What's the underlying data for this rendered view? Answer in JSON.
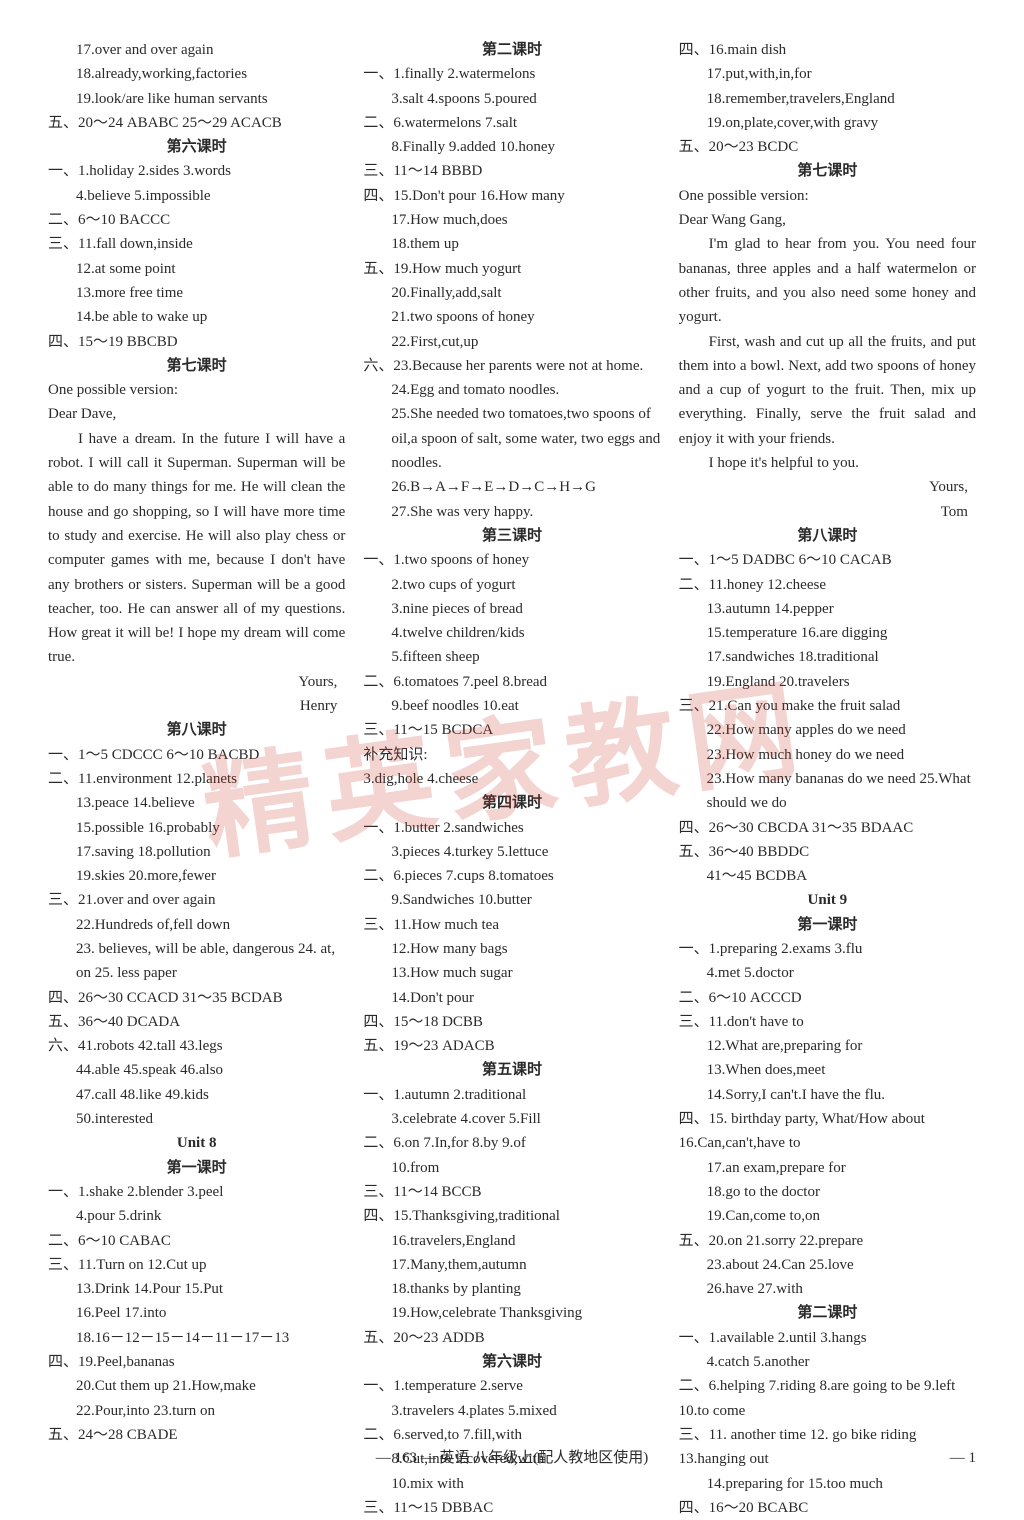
{
  "watermark": "精英家教网",
  "footer": "— 163 —   英语 八年级上(配人教地区使用)",
  "page_right": "— 1",
  "col1": [
    {
      "cls": "indent1",
      "t": "17.over and over again"
    },
    {
      "cls": "indent1",
      "t": "18.already,working,factories"
    },
    {
      "cls": "indent1",
      "t": "19.look/are like human servants"
    },
    {
      "cls": "",
      "t": "五、20～24 ABABC 25～29 ACACB"
    },
    {
      "cls": "header",
      "t": "第六课时"
    },
    {
      "cls": "",
      "t": "一、1.holiday  2.sides  3.words"
    },
    {
      "cls": "indent1",
      "t": "4.believe  5.impossible"
    },
    {
      "cls": "",
      "t": "二、6～10 BACCC"
    },
    {
      "cls": "",
      "t": "三、11.fall down,inside"
    },
    {
      "cls": "indent1",
      "t": "12.at some point"
    },
    {
      "cls": "indent1",
      "t": "13.more free time"
    },
    {
      "cls": "indent1",
      "t": "14.be able to wake up"
    },
    {
      "cls": "",
      "t": "四、15～19  BBCBD"
    },
    {
      "cls": "header",
      "t": "第七课时"
    },
    {
      "cls": "",
      "t": "One possible version:"
    },
    {
      "cls": "",
      "t": "Dear Dave,"
    },
    {
      "cls": "para",
      "t": "I have a dream. In the future I will have a robot. I will call it Superman. Superman will be able to do many things for me. He will clean the house and go shopping, so I will have more time to study and exercise. He will also play chess or computer games with me, because I don't have any brothers or sisters. Superman will be a good teacher, too. He can answer all of my questions. How great it will be! I hope my dream will come true."
    },
    {
      "cls": "right",
      "t": "Yours,"
    },
    {
      "cls": "right",
      "t": "Henry"
    },
    {
      "cls": "header",
      "t": "第八课时"
    },
    {
      "cls": "",
      "t": "一、1～5 CDCCC  6～10 BACBD"
    },
    {
      "cls": "",
      "t": "二、11.environment  12.planets"
    },
    {
      "cls": "indent1",
      "t": "13.peace  14.believe"
    },
    {
      "cls": "indent1",
      "t": "15.possible  16.probably"
    },
    {
      "cls": "indent1",
      "t": "17.saving  18.pollution"
    },
    {
      "cls": "indent1",
      "t": "19.skies  20.more,fewer"
    },
    {
      "cls": "",
      "t": "三、21.over and over again"
    },
    {
      "cls": "indent1",
      "t": "22.Hundreds of,fell down"
    },
    {
      "cls": "indent1",
      "t": "23. believes, will be able, dangerous  24. at, on  25. less paper"
    },
    {
      "cls": "",
      "t": "四、26～30 CCACD 31～35 BCDAB"
    },
    {
      "cls": "",
      "t": "五、36～40  DCADA"
    },
    {
      "cls": "",
      "t": "六、41.robots  42.tall  43.legs"
    },
    {
      "cls": "indent1",
      "t": "44.able  45.speak  46.also"
    },
    {
      "cls": "indent1",
      "t": "47.call  48.like  49.kids"
    },
    {
      "cls": "indent1",
      "t": "50.interested"
    },
    {
      "cls": "header",
      "t": "Unit 8"
    },
    {
      "cls": "header",
      "t": "第一课时"
    },
    {
      "cls": "",
      "t": "一、1.shake  2.blender  3.peel"
    },
    {
      "cls": "indent1",
      "t": "4.pour  5.drink"
    },
    {
      "cls": "",
      "t": "二、6～10 CABAC"
    },
    {
      "cls": "",
      "t": "三、11.Turn on  12.Cut up"
    },
    {
      "cls": "indent1",
      "t": "13.Drink  14.Pour  15.Put"
    },
    {
      "cls": "indent1",
      "t": "16.Peel  17.into"
    },
    {
      "cls": "indent1",
      "t": "18.16－12－15－14－11－17－13"
    },
    {
      "cls": "",
      "t": "四、19.Peel,bananas"
    },
    {
      "cls": "indent1",
      "t": "20.Cut them up  21.How,make"
    },
    {
      "cls": "indent1",
      "t": "22.Pour,into  23.turn on"
    },
    {
      "cls": "",
      "t": "五、24～28  CBADE"
    }
  ],
  "col2": [
    {
      "cls": "header",
      "t": "第二课时"
    },
    {
      "cls": "",
      "t": "一、1.finally  2.watermelons"
    },
    {
      "cls": "indent1",
      "t": "3.salt  4.spoons  5.poured"
    },
    {
      "cls": "",
      "t": "二、6.watermelons  7.salt"
    },
    {
      "cls": "indent1",
      "t": "8.Finally  9.added  10.honey"
    },
    {
      "cls": "",
      "t": "三、11～14  BBBD"
    },
    {
      "cls": "",
      "t": "四、15.Don't pour  16.How many"
    },
    {
      "cls": "indent1",
      "t": "17.How much,does"
    },
    {
      "cls": "indent1",
      "t": "18.them up"
    },
    {
      "cls": "",
      "t": "五、19.How much yogurt"
    },
    {
      "cls": "indent1",
      "t": "20.Finally,add,salt"
    },
    {
      "cls": "indent1",
      "t": "21.two spoons of honey"
    },
    {
      "cls": "indent1",
      "t": "22.First,cut,up"
    },
    {
      "cls": "",
      "t": "六、23.Because her parents were not at home."
    },
    {
      "cls": "indent1",
      "t": "24.Egg and tomato noodles."
    },
    {
      "cls": "indent1",
      "t": "25.She needed two tomatoes,two spoons of oil,a spoon of salt, some water, two eggs and noodles."
    },
    {
      "cls": "indent1",
      "t": "26.B→A→F→E→D→C→H→G"
    },
    {
      "cls": "indent1",
      "t": "27.She was very happy."
    },
    {
      "cls": "header",
      "t": "第三课时"
    },
    {
      "cls": "",
      "t": "一、1.two spoons of honey"
    },
    {
      "cls": "indent1",
      "t": "2.two cups of yogurt"
    },
    {
      "cls": "indent1",
      "t": "3.nine pieces of bread"
    },
    {
      "cls": "indent1",
      "t": "4.twelve children/kids"
    },
    {
      "cls": "indent1",
      "t": "5.fifteen sheep"
    },
    {
      "cls": "",
      "t": "二、6.tomatoes  7.peel  8.bread"
    },
    {
      "cls": "indent1",
      "t": "9.beef noodles  10.eat"
    },
    {
      "cls": "",
      "t": "三、11～15  BCDCA"
    },
    {
      "cls": "",
      "t": "补充知识:"
    },
    {
      "cls": "",
      "t": "3.dig,hole  4.cheese"
    },
    {
      "cls": "header",
      "t": "第四课时"
    },
    {
      "cls": "",
      "t": "一、1.butter  2.sandwiches"
    },
    {
      "cls": "indent1",
      "t": "3.pieces  4.turkey  5.lettuce"
    },
    {
      "cls": "",
      "t": "二、6.pieces  7.cups  8.tomatoes"
    },
    {
      "cls": "indent1",
      "t": "9.Sandwiches  10.butter"
    },
    {
      "cls": "",
      "t": "三、11.How much tea"
    },
    {
      "cls": "indent1",
      "t": "12.How many bags"
    },
    {
      "cls": "indent1",
      "t": "13.How much sugar"
    },
    {
      "cls": "indent1",
      "t": "14.Don't pour"
    },
    {
      "cls": "",
      "t": "四、15～18  DCBB"
    },
    {
      "cls": "",
      "t": "五、19～23  ADACB"
    },
    {
      "cls": "header",
      "t": "第五课时"
    },
    {
      "cls": "",
      "t": "一、1.autumn  2.traditional"
    },
    {
      "cls": "indent1",
      "t": "3.celebrate  4.cover  5.Fill"
    },
    {
      "cls": "",
      "t": "二、6.on  7.In,for  8.by  9.of"
    },
    {
      "cls": "indent1",
      "t": "10.from"
    },
    {
      "cls": "",
      "t": "三、11～14  BCCB"
    },
    {
      "cls": "",
      "t": "四、15.Thanksgiving,traditional"
    },
    {
      "cls": "indent1",
      "t": "16.travelers,England"
    },
    {
      "cls": "indent1",
      "t": "17.Many,them,autumn"
    },
    {
      "cls": "indent1",
      "t": "18.thanks by planting"
    },
    {
      "cls": "indent1",
      "t": "19.How,celebrate Thanksgiving"
    },
    {
      "cls": "",
      "t": "五、20～23  ADDB"
    },
    {
      "cls": "header",
      "t": "第六课时"
    },
    {
      "cls": "",
      "t": "一、1.temperature  2.serve"
    },
    {
      "cls": "indent1",
      "t": "3.travelers  4.plates  5.mixed"
    },
    {
      "cls": "",
      "t": "二、6.served,to  7.fill,with"
    },
    {
      "cls": "indent1",
      "t": "8.Cut,into  9.covered,with"
    },
    {
      "cls": "indent1",
      "t": "10.mix with"
    },
    {
      "cls": "",
      "t": "三、11～15  DBBAC"
    }
  ],
  "col3": [
    {
      "cls": "",
      "t": "四、16.main dish"
    },
    {
      "cls": "indent1",
      "t": "17.put,with,in,for"
    },
    {
      "cls": "indent1",
      "t": "18.remember,travelers,England"
    },
    {
      "cls": "indent1",
      "t": "19.on,plate,cover,with gravy"
    },
    {
      "cls": "",
      "t": "五、20～23  BCDC"
    },
    {
      "cls": "header",
      "t": "第七课时"
    },
    {
      "cls": "",
      "t": "One possible version:"
    },
    {
      "cls": "",
      "t": "Dear Wang Gang,"
    },
    {
      "cls": "para",
      "t": "I'm glad to hear from you. You need four bananas, three apples and a half watermelon or other fruits, and you also need some honey and yogurt."
    },
    {
      "cls": "para",
      "t": "First, wash and cut up all the fruits, and put them into a bowl. Next, add two spoons of honey and a cup of yogurt to the fruit. Then, mix up everything. Finally, serve the fruit salad and enjoy it with your friends."
    },
    {
      "cls": "para",
      "t": "I hope it's helpful to you."
    },
    {
      "cls": "right",
      "t": "Yours,"
    },
    {
      "cls": "right",
      "t": "Tom"
    },
    {
      "cls": "header",
      "t": "第八课时"
    },
    {
      "cls": "",
      "t": "一、1～5 DADBC 6～10 CACAB"
    },
    {
      "cls": "",
      "t": "二、11.honey  12.cheese"
    },
    {
      "cls": "indent1",
      "t": "13.autumn  14.pepper"
    },
    {
      "cls": "indent1",
      "t": "15.temperature  16.are digging"
    },
    {
      "cls": "indent1",
      "t": "17.sandwiches  18.traditional"
    },
    {
      "cls": "indent1",
      "t": "19.England  20.travelers"
    },
    {
      "cls": "",
      "t": "三、21.Can you make the fruit salad"
    },
    {
      "cls": "indent1",
      "t": "22.How many apples do we need"
    },
    {
      "cls": "indent1",
      "t": "23.How much honey do we need"
    },
    {
      "cls": "indent1",
      "t": "23.How many bananas do we need  25.What should we do"
    },
    {
      "cls": "",
      "t": "四、26～30 CBCDA 31～35 BDAAC"
    },
    {
      "cls": "",
      "t": "五、36～40  BBDDC"
    },
    {
      "cls": "indent1",
      "t": "41～45  BCDBA"
    },
    {
      "cls": "header",
      "t": "Unit 9"
    },
    {
      "cls": "header",
      "t": "第一课时"
    },
    {
      "cls": "",
      "t": "一、1.preparing  2.exams  3.flu"
    },
    {
      "cls": "indent1",
      "t": "4.met  5.doctor"
    },
    {
      "cls": "",
      "t": "二、6～10 ACCCD"
    },
    {
      "cls": "",
      "t": "三、11.don't have to"
    },
    {
      "cls": "indent1",
      "t": "12.What are,preparing for"
    },
    {
      "cls": "indent1",
      "t": "13.When does,meet"
    },
    {
      "cls": "indent1",
      "t": "14.Sorry,I can't.I have the flu."
    },
    {
      "cls": "",
      "t": "四、15. birthday party, What/How about  16.Can,can't,have to"
    },
    {
      "cls": "indent1",
      "t": "17.an exam,prepare for"
    },
    {
      "cls": "indent1",
      "t": "18.go to the doctor"
    },
    {
      "cls": "indent1",
      "t": "19.Can,come to,on"
    },
    {
      "cls": "",
      "t": "五、20.on  21.sorry  22.prepare"
    },
    {
      "cls": "indent1",
      "t": "23.about  24.Can  25.love"
    },
    {
      "cls": "indent1",
      "t": "26.have  27.with"
    },
    {
      "cls": "header",
      "t": "第二课时"
    },
    {
      "cls": "",
      "t": "一、1.available  2.until  3.hangs"
    },
    {
      "cls": "indent1",
      "t": "4.catch  5.another"
    },
    {
      "cls": "",
      "t": "二、6.helping  7.riding  8.are going to be  9.left  10.to come"
    },
    {
      "cls": "",
      "t": "三、11. another time  12. go bike riding  13.hanging out"
    },
    {
      "cls": "indent1",
      "t": "14.preparing for  15.too much"
    },
    {
      "cls": "",
      "t": "四、16～20  BCABC"
    }
  ]
}
